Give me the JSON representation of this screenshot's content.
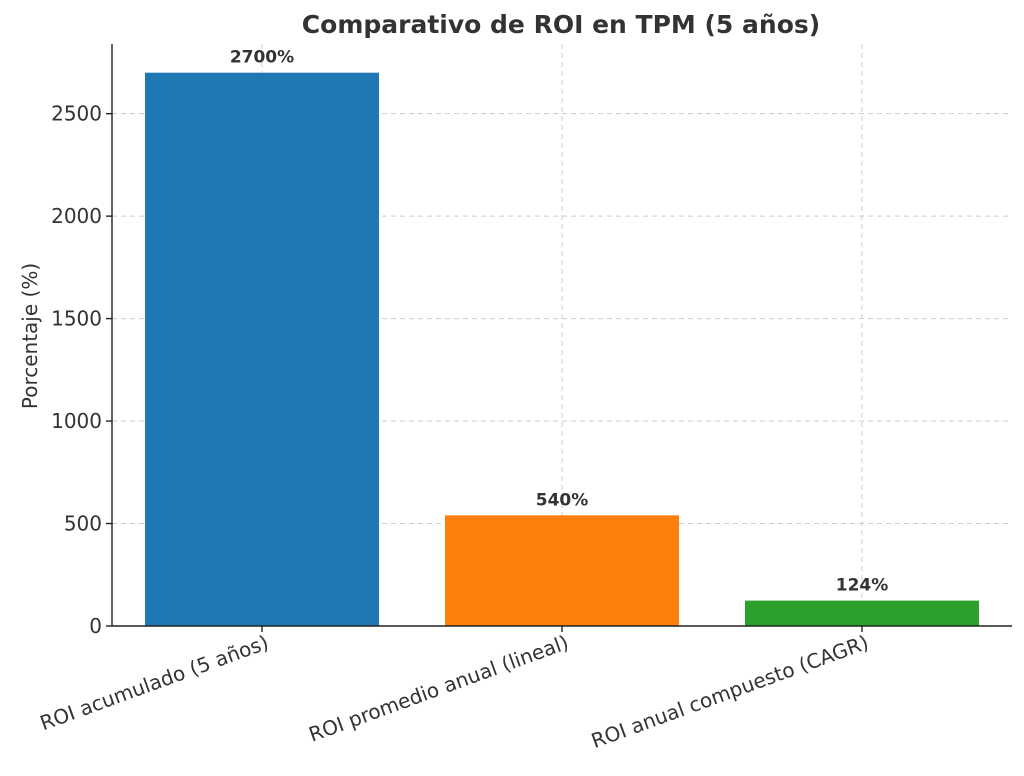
{
  "chart_data": {
    "type": "bar",
    "title": "Comparativo de ROI en TPM (5 años)",
    "xlabel": "",
    "ylabel": "Porcentaje (%)",
    "categories": [
      "ROI acumulado (5 años)",
      "ROI promedio anual (lineal)",
      "ROI anual compuesto (CAGR)"
    ],
    "values": [
      2700,
      540,
      124
    ],
    "data_labels": [
      "2700%",
      "540%",
      "124%"
    ],
    "colors": [
      "#1f77b4",
      "#ff7f0e",
      "#2ca02c"
    ],
    "ylim": [
      0,
      2840
    ],
    "yticks": [
      0,
      500,
      1000,
      1500,
      2000,
      2500
    ],
    "grid": true
  }
}
